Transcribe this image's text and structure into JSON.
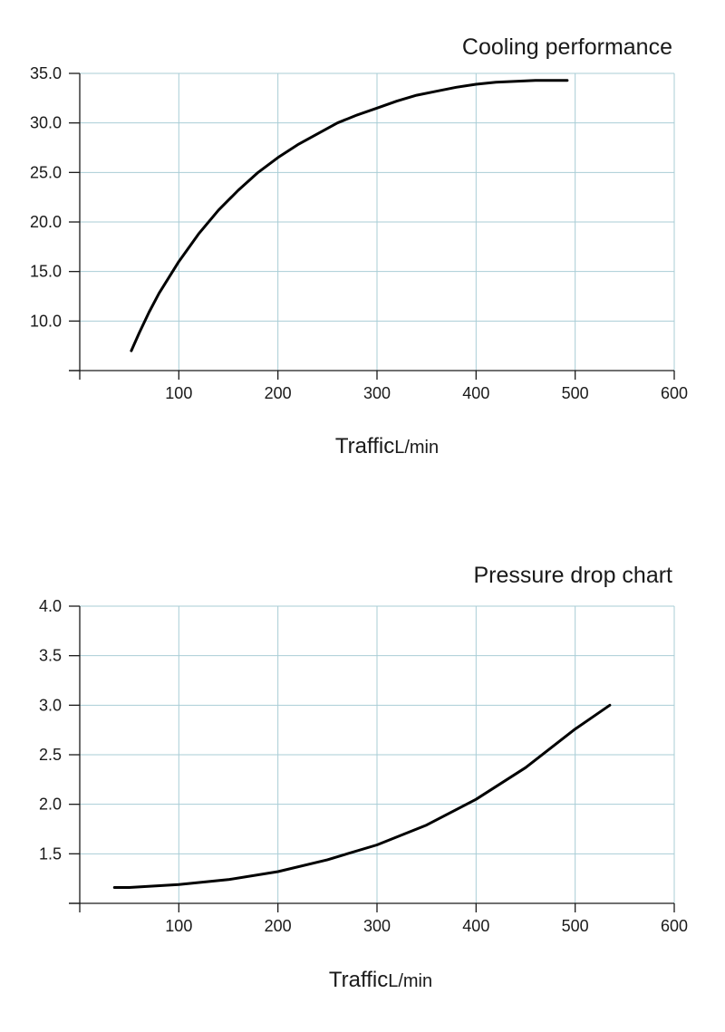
{
  "chart_data": [
    {
      "type": "line",
      "title": "Cooling performance",
      "xlabel": "Traffic",
      "xunit": "L/min",
      "ylabel": "",
      "xlim": [
        0,
        600
      ],
      "ylim": [
        5,
        35
      ],
      "x_ticks": [
        "100",
        "200",
        "300",
        "400",
        "500",
        "600"
      ],
      "y_ticks": [
        "10.0",
        "15.0",
        "20.0",
        "25.0",
        "30.0",
        "35.0"
      ],
      "grid": true,
      "series": [
        {
          "x": [
            52,
            60,
            70,
            80,
            90,
            100,
            120,
            140,
            160,
            180,
            200,
            220,
            240,
            260,
            280,
            300,
            320,
            340,
            360,
            380,
            400,
            420,
            440,
            460,
            480,
            492
          ],
          "y": [
            7.0,
            8.8,
            10.9,
            12.8,
            14.4,
            16.0,
            18.8,
            21.2,
            23.2,
            25.0,
            26.5,
            27.8,
            28.9,
            30.0,
            30.8,
            31.5,
            32.2,
            32.8,
            33.2,
            33.6,
            33.9,
            34.1,
            34.2,
            34.3,
            34.3,
            34.3
          ]
        }
      ]
    },
    {
      "type": "line",
      "title": "Pressure drop chart",
      "xlabel": "Traffic",
      "xunit": "L/min",
      "ylabel": "",
      "xlim": [
        0,
        600
      ],
      "ylim": [
        1,
        4
      ],
      "x_ticks": [
        "100",
        "200",
        "300",
        "400",
        "500",
        "600"
      ],
      "y_ticks": [
        "1.5",
        "2.0",
        "2.5",
        "3.0",
        "3.5",
        "4.0"
      ],
      "grid": true,
      "series": [
        {
          "x": [
            35,
            50,
            100,
            150,
            200,
            250,
            300,
            350,
            400,
            450,
            500,
            535
          ],
          "y": [
            1.16,
            1.16,
            1.19,
            1.24,
            1.32,
            1.44,
            1.59,
            1.79,
            2.05,
            2.37,
            2.76,
            3.0
          ]
        }
      ]
    }
  ]
}
